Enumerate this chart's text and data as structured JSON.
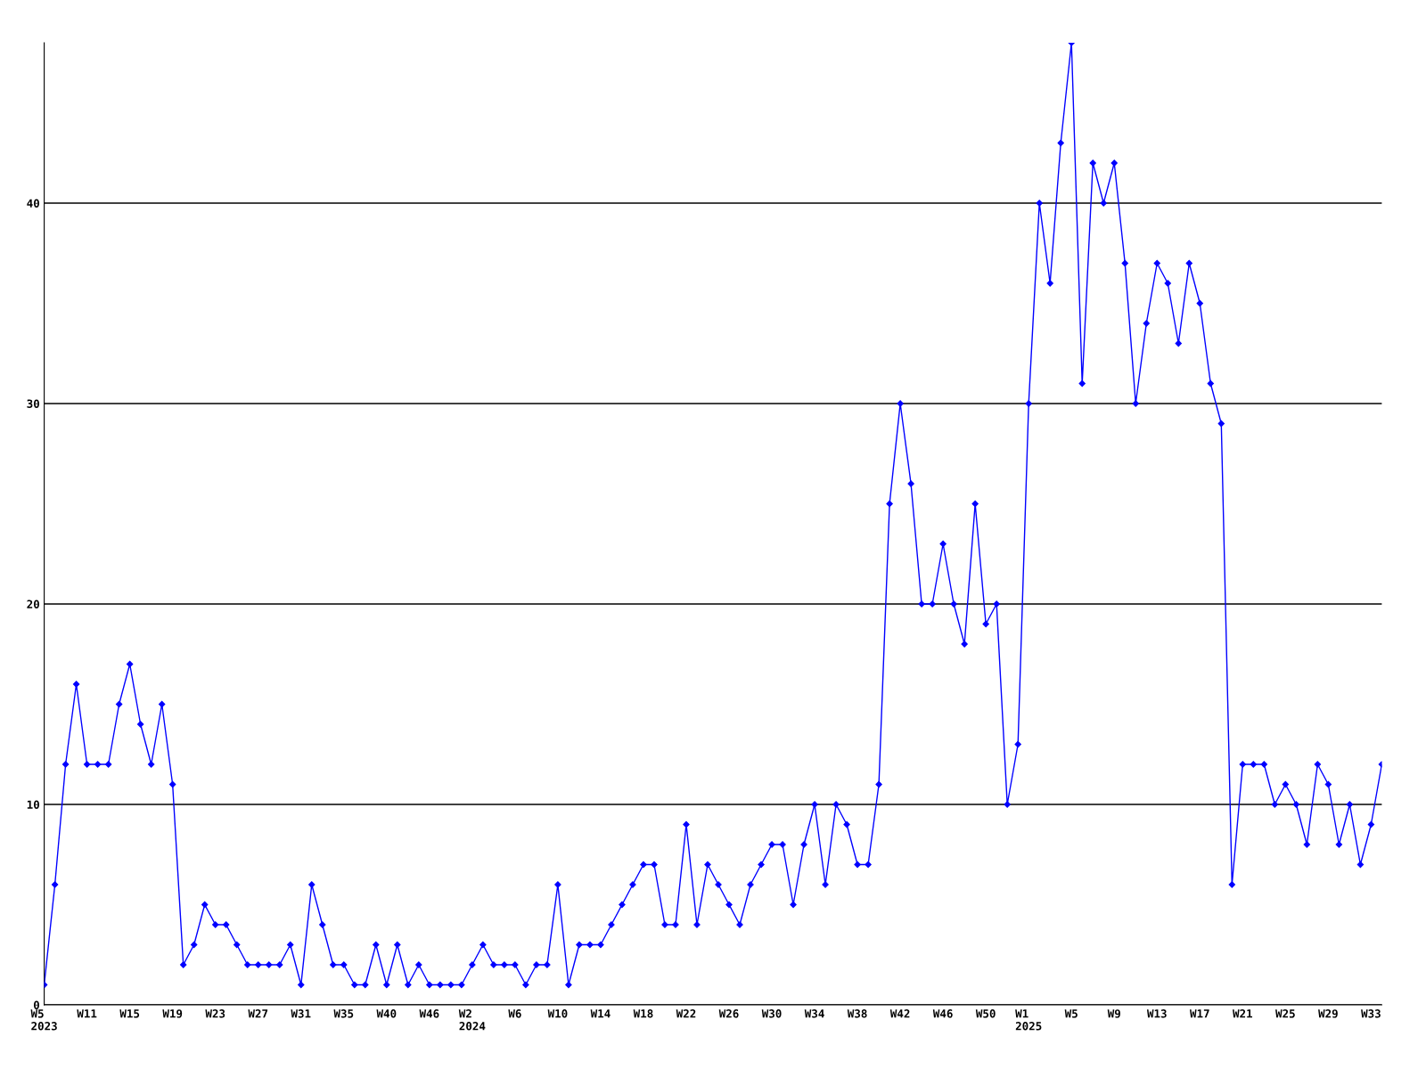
{
  "chart_data": {
    "type": "line",
    "categories": [
      "W5\n2023",
      null,
      null,
      null,
      "W11",
      null,
      null,
      null,
      "W15",
      null,
      null,
      null,
      "W19",
      null,
      null,
      null,
      "W23",
      null,
      null,
      null,
      "W27",
      null,
      null,
      null,
      "W31",
      null,
      null,
      null,
      "W35",
      null,
      null,
      null,
      "W40",
      null,
      null,
      null,
      "W46",
      null,
      null,
      null,
      "W2\n2024",
      null,
      null,
      null,
      "W6",
      null,
      null,
      null,
      "W10",
      null,
      null,
      null,
      "W14",
      null,
      null,
      null,
      "W18",
      null,
      null,
      null,
      "W22",
      null,
      null,
      null,
      "W26",
      null,
      null,
      null,
      "W30",
      null,
      null,
      null,
      "W34",
      null,
      null,
      null,
      "W38",
      null,
      null,
      null,
      "W42",
      null,
      null,
      null,
      "W46",
      null,
      null,
      null,
      "W50",
      null,
      null,
      null,
      "W1\n2025",
      null,
      null,
      null,
      "W5",
      null,
      null,
      null,
      "W9",
      null,
      null,
      null,
      "W13",
      null,
      null,
      null,
      "W17",
      null,
      null,
      null,
      "W21",
      null,
      null,
      null,
      "W25",
      null,
      null,
      null,
      "W29",
      null,
      null,
      null,
      "W33",
      null
    ],
    "series": [
      {
        "color": "#0000ff",
        "values": [
          1,
          6,
          12,
          16,
          12,
          12,
          12,
          15,
          17,
          14,
          12,
          15,
          11,
          2,
          3,
          5,
          4,
          4,
          3,
          2,
          2,
          2,
          2,
          3,
          1,
          6,
          4,
          2,
          2,
          1,
          1,
          3,
          1,
          3,
          1,
          2,
          1,
          1,
          1,
          1,
          2,
          3,
          2,
          2,
          2,
          1,
          2,
          2,
          6,
          1,
          3,
          3,
          3,
          4,
          5,
          6,
          7,
          7,
          4,
          4,
          9,
          4,
          7,
          6,
          5,
          4,
          6,
          7,
          8,
          8,
          5,
          8,
          10,
          6,
          10,
          9,
          7,
          7,
          11,
          25,
          30,
          26,
          20,
          20,
          23,
          20,
          18,
          25,
          19,
          20,
          10,
          13,
          30,
          40,
          36,
          43,
          48,
          31,
          42,
          40,
          42,
          37,
          30,
          34,
          37,
          36,
          33,
          37,
          35,
          31,
          29,
          6,
          12,
          12,
          12,
          10,
          11,
          10,
          8,
          12,
          11,
          8,
          10,
          7,
          9,
          12
        ]
      }
    ],
    "ylim": [
      0,
      48
    ],
    "yticks": [
      0,
      10,
      20,
      30,
      40
    ],
    "grid": "y",
    "marker": "diamond",
    "line_style": "solid",
    "legend": false
  }
}
